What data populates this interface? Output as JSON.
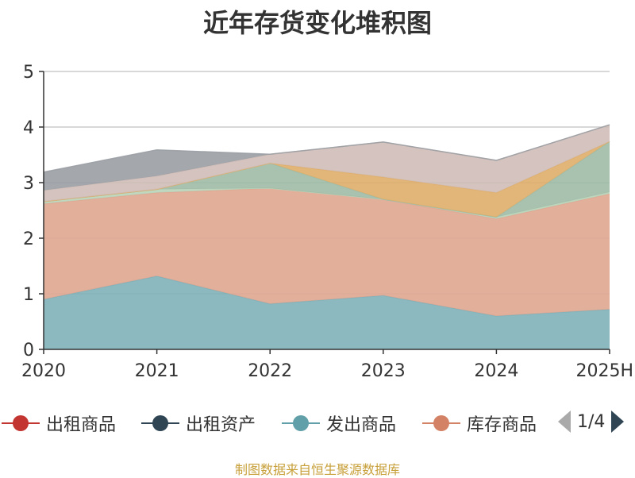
{
  "title": "近年存货变化堆积图",
  "source_note": "制图数据来自恒生聚源数据库",
  "legend": {
    "items": [
      {
        "label": "出租商品",
        "color": "#c23531"
      },
      {
        "label": "出租资产",
        "color": "#2f4554"
      },
      {
        "label": "发出商品",
        "color": "#61a0a8"
      },
      {
        "label": "库存商品",
        "color": "#d48265"
      }
    ],
    "page": "1/4"
  },
  "chart_data": {
    "type": "area",
    "stacked": true,
    "categories": [
      "2020",
      "2021",
      "2022",
      "2023",
      "2024",
      "2025H"
    ],
    "ylim": [
      0,
      5
    ],
    "yticks": [
      0,
      1,
      2,
      3,
      4,
      5
    ],
    "grid": true,
    "series": [
      {
        "id": "s1",
        "color": "#7fb0b8",
        "values": [
          0.9,
          1.32,
          0.82,
          0.97,
          0.6,
          0.72
        ]
      },
      {
        "id": "s2",
        "color": "#dfa690",
        "values": [
          1.72,
          1.5,
          2.08,
          1.73,
          1.75,
          2.08
        ]
      },
      {
        "id": "s3",
        "color": "#b9d3b9",
        "values": [
          0.04,
          0.06,
          0.0,
          0.0,
          0.03,
          0.03
        ]
      },
      {
        "id": "s4",
        "color": "#9fbba6",
        "values": [
          0.0,
          0.0,
          0.45,
          0.0,
          0.0,
          0.91
        ]
      },
      {
        "id": "s5",
        "color": "#dfae6a",
        "values": [
          0.0,
          0.0,
          0.0,
          0.4,
          0.44,
          0.0
        ]
      },
      {
        "id": "s6",
        "color": "#cfbcb7",
        "values": [
          0.2,
          0.24,
          0.16,
          0.63,
          0.58,
          0.3
        ]
      },
      {
        "id": "s7",
        "color": "#9a9ea4",
        "values": [
          0.33,
          0.47,
          0.0,
          0.0,
          0.0,
          0.0
        ]
      }
    ]
  }
}
